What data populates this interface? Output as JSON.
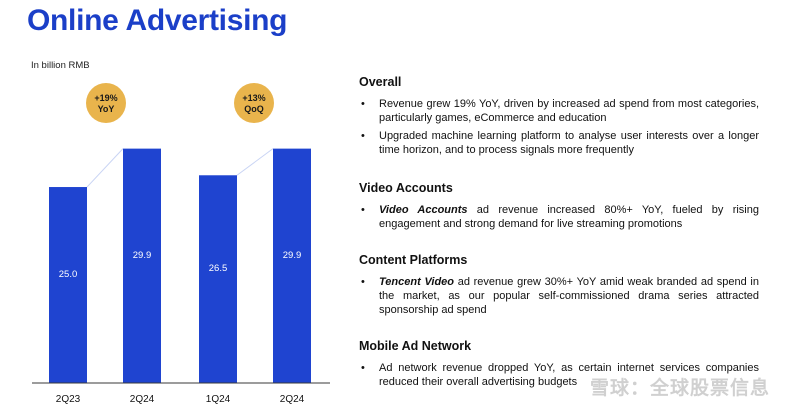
{
  "title": "Online Advertising",
  "unit_label": "In billion RMB",
  "colors": {
    "bar": "#1f44d0",
    "badge": "#e9b44c",
    "title": "#1b3fc8"
  },
  "chart_data": {
    "type": "bar",
    "categories": [
      "2Q23",
      "2Q24",
      "1Q24",
      "2Q24"
    ],
    "values": [
      25.0,
      29.9,
      26.5,
      29.9
    ],
    "value_labels": [
      "25.0",
      "29.9",
      "26.5",
      "29.9"
    ],
    "ylim": [
      0,
      31
    ],
    "groups": [
      {
        "categories": [
          "2Q23",
          "2Q24"
        ],
        "badge_line1": "+19%",
        "badge_line2": "YoY"
      },
      {
        "categories": [
          "1Q24",
          "2Q24"
        ],
        "badge_line1": "+13%",
        "badge_line2": "QoQ"
      }
    ]
  },
  "sections": {
    "overall": {
      "heading": "Overall",
      "bullets": [
        "Revenue grew 19% YoY, driven by increased ad spend from most categories, particularly games, eCommerce and education",
        "Upgraded machine learning platform to analyse user interests over a longer time horizon, and to process signals more frequently"
      ]
    },
    "video": {
      "heading": "Video Accounts",
      "bullet_lead": "Video Accounts",
      "bullet_rest": " ad revenue increased 80%+ YoY, fueled by rising engagement and strong demand for live streaming promotions"
    },
    "content": {
      "heading": "Content Platforms",
      "bullet_lead": "Tencent Video",
      "bullet_rest": " ad revenue grew 30%+ YoY amid weak branded ad spend in the market, as our popular self-commissioned drama series attracted sponsorship ad spend"
    },
    "mobile": {
      "heading": "Mobile Ad Network",
      "bullets": [
        "Ad network revenue dropped YoY, as certain internet services companies reduced their overall advertising budgets"
      ]
    }
  },
  "watermark": "雪球：全球股票信息"
}
